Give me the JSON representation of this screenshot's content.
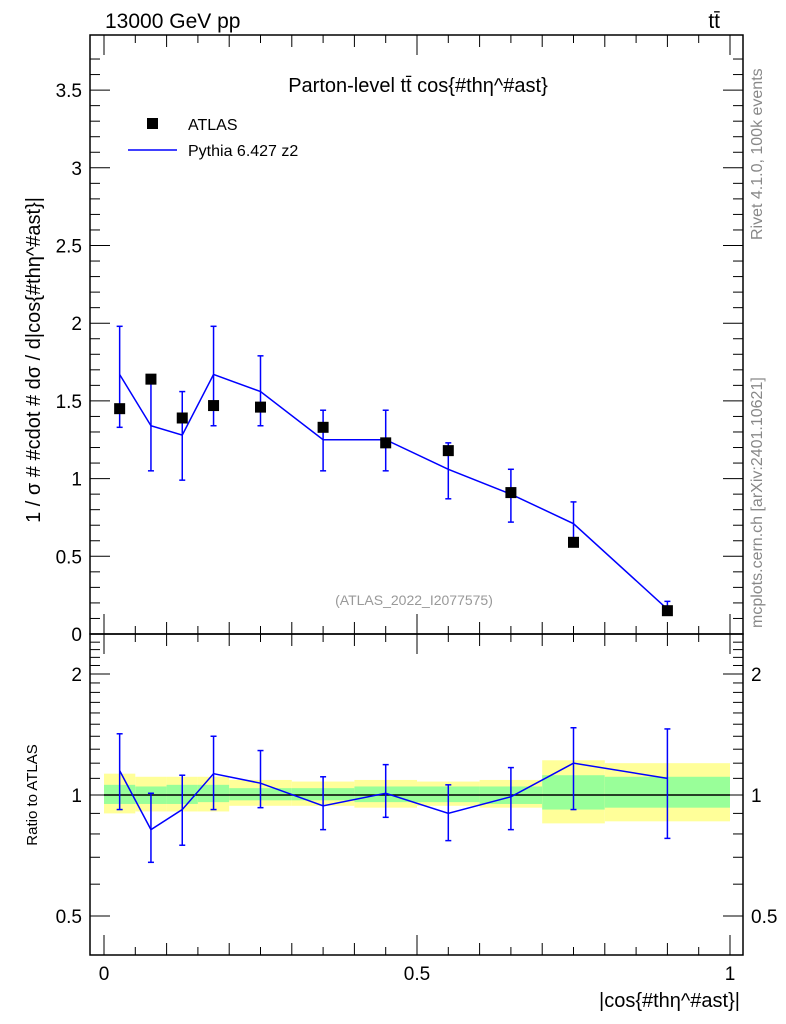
{
  "header": {
    "left": "13000 GeV pp",
    "right": "tt̄"
  },
  "side": {
    "rivet": "Rivet 4.1.0,  100k events",
    "mcplots": "mcplots.cern.ch [arXiv:2401.10621]"
  },
  "chart_data": [
    {
      "type": "scatter",
      "title": "Parton-level tt̄ cos{#thη^#ast}",
      "ylabel": "1 / σ # #cdot # dσ / d|cos{#thη^#ast}|",
      "xlabel": "|cos{#thη^#ast}|",
      "annotation": "(ATLAS_2022_I2077575)",
      "xlim": [
        0,
        1
      ],
      "ylim": [
        0,
        3.85
      ],
      "yticks": [
        "0",
        "0.5",
        "1",
        "1.5",
        "2",
        "2.5",
        "3",
        "3.5"
      ],
      "legend": {
        "placement": "top-left",
        "entries": [
          "ATLAS",
          "Pythia 6.427 z2"
        ]
      },
      "bin_edges": [
        0,
        0.05,
        0.1,
        0.15,
        0.2,
        0.3,
        0.4,
        0.5,
        0.6,
        0.7,
        0.8,
        1.0
      ],
      "series": [
        {
          "name": "ATLAS",
          "color": "#000000",
          "values": [
            1.45,
            1.64,
            1.39,
            1.47,
            1.46,
            1.33,
            1.23,
            1.18,
            0.91,
            0.59,
            0.15
          ]
        },
        {
          "name": "Pythia 6.427 z2",
          "color": "#0000ff",
          "values": [
            1.67,
            1.34,
            1.28,
            1.67,
            1.56,
            1.25,
            1.25,
            1.06,
            0.9,
            0.71,
            0.16
          ],
          "err_low": [
            1.33,
            1.05,
            0.99,
            1.34,
            1.34,
            1.05,
            1.05,
            0.87,
            0.72,
            0.58,
            0.13
          ],
          "err_high": [
            1.98,
            1.62,
            1.56,
            1.98,
            1.79,
            1.44,
            1.44,
            1.23,
            1.06,
            0.85,
            0.21
          ]
        }
      ]
    },
    {
      "type": "line",
      "ylabel": "Ratio to ATLAS",
      "yscale": "log",
      "ylim": [
        0.4,
        2.5
      ],
      "yticks": [
        "0.5",
        "1",
        "2"
      ],
      "xticks": [
        "0",
        "0.5",
        "1"
      ],
      "bin_edges": [
        0,
        0.05,
        0.1,
        0.15,
        0.2,
        0.3,
        0.4,
        0.5,
        0.6,
        0.7,
        0.8,
        1.0
      ],
      "band_yellow_low": [
        0.9,
        0.91,
        0.91,
        0.91,
        0.94,
        0.94,
        0.93,
        0.94,
        0.93,
        0.85,
        0.86
      ],
      "band_yellow_high": [
        1.13,
        1.11,
        1.11,
        1.11,
        1.09,
        1.08,
        1.09,
        1.08,
        1.09,
        1.22,
        1.2
      ],
      "band_green_low": [
        0.95,
        0.95,
        0.95,
        0.96,
        0.97,
        0.97,
        0.96,
        0.96,
        0.95,
        0.92,
        0.93
      ],
      "band_green_high": [
        1.06,
        1.05,
        1.06,
        1.06,
        1.04,
        1.04,
        1.05,
        1.05,
        1.05,
        1.12,
        1.11
      ],
      "series": [
        {
          "name": "Pythia 6.427 z2",
          "color": "#0000ff",
          "values": [
            1.15,
            0.82,
            0.92,
            1.13,
            1.07,
            0.94,
            1.01,
            0.9,
            0.99,
            1.2,
            1.1
          ],
          "err_low": [
            0.92,
            0.68,
            0.75,
            0.92,
            0.93,
            0.82,
            0.88,
            0.77,
            0.82,
            0.92,
            0.78
          ],
          "err_high": [
            1.42,
            1.01,
            1.12,
            1.4,
            1.29,
            1.11,
            1.19,
            1.06,
            1.17,
            1.47,
            1.46
          ]
        }
      ]
    }
  ]
}
